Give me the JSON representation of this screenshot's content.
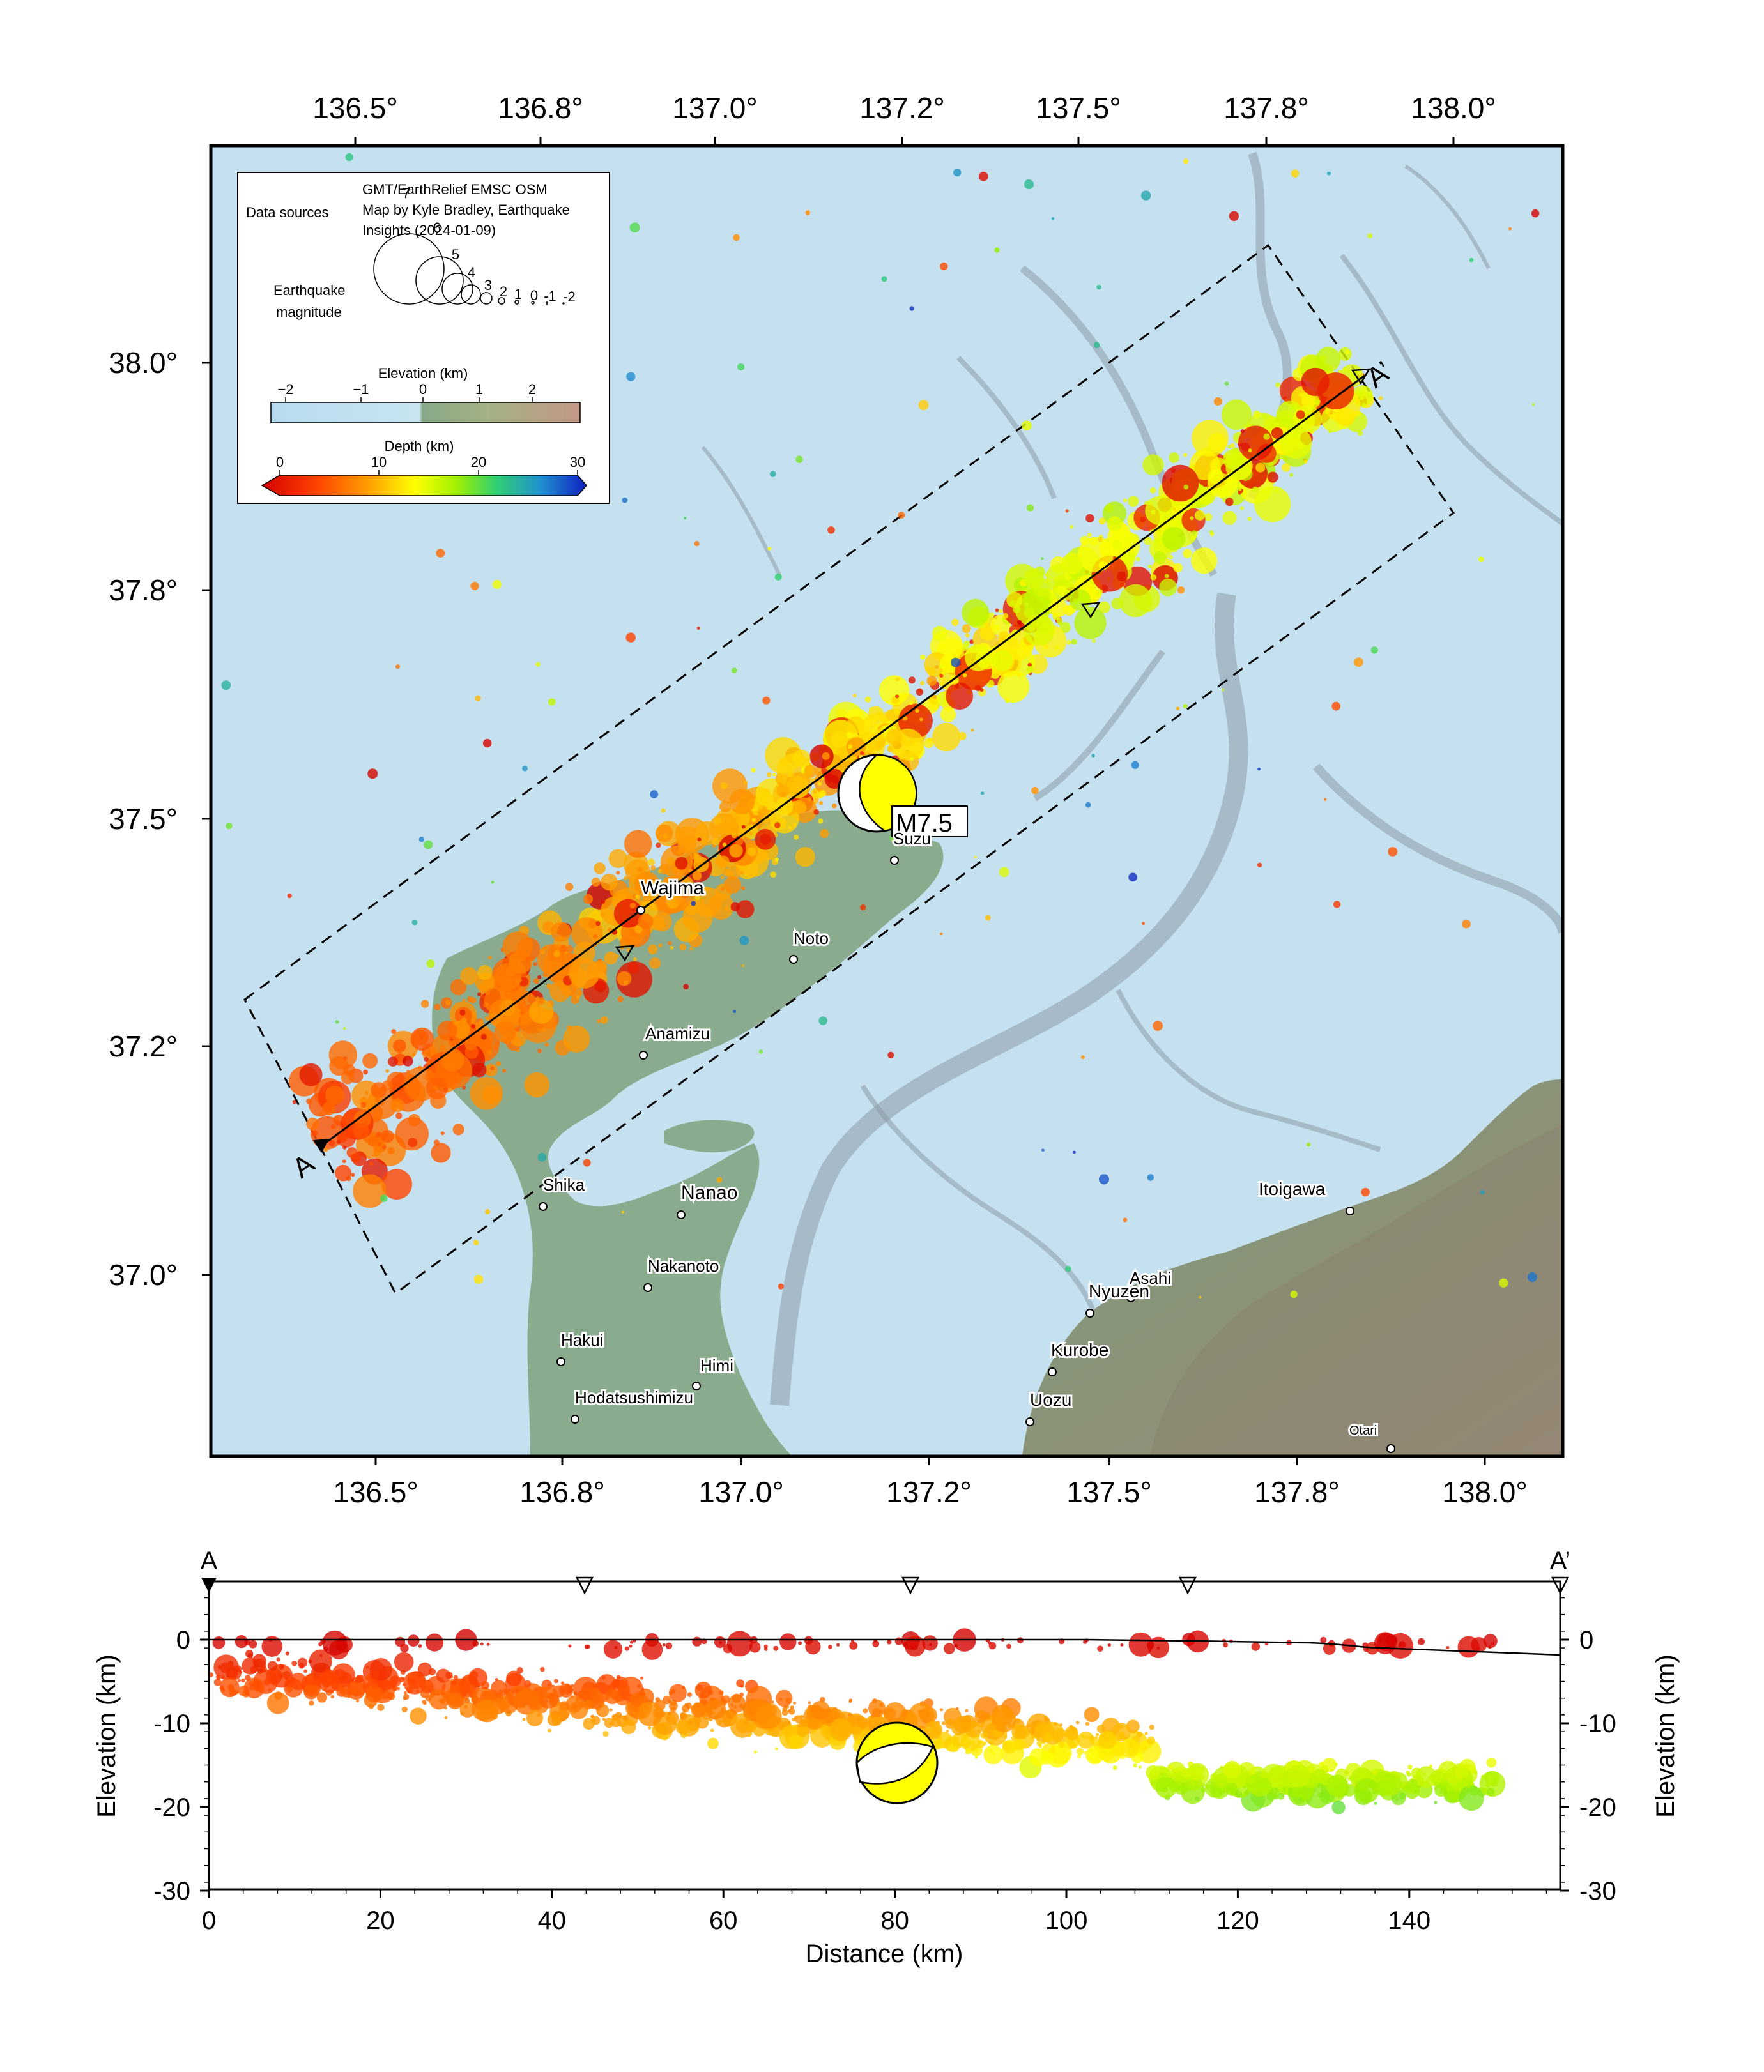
{
  "map": {
    "lon_ticks_top": [
      "136.5°",
      "136.8°",
      "137.0°",
      "137.2°",
      "137.5°",
      "137.8°",
      "138.0°"
    ],
    "lon_ticks_bottom": [
      "136.5°",
      "136.8°",
      "137.0°",
      "137.2°",
      "137.5°",
      "137.8°",
      "138.0°"
    ],
    "lat_ticks": [
      "38.0°",
      "37.8°",
      "37.5°",
      "37.2°",
      "37.0°"
    ],
    "profile_start_label": "A",
    "profile_end_label": "A’",
    "mainshock_label": "M7.5",
    "places": [
      {
        "name": "Suzu"
      },
      {
        "name": "Wajima"
      },
      {
        "name": "Noto"
      },
      {
        "name": "Anamizu"
      },
      {
        "name": "Shika"
      },
      {
        "name": "Nanao"
      },
      {
        "name": "Nakanoto"
      },
      {
        "name": "Hakui"
      },
      {
        "name": "Himi"
      },
      {
        "name": "Hodatsushimizu"
      },
      {
        "name": "Itoigawa"
      },
      {
        "name": "Asahi"
      },
      {
        "name": "Nyuzen"
      },
      {
        "name": "Kurobe"
      },
      {
        "name": "Uozu"
      },
      {
        "name": "Otari"
      }
    ]
  },
  "legend": {
    "data_sources_label": "Data sources",
    "credits_line1": "GMT/EarthRelief EMSC OSM",
    "credits_line2": "Map by Kyle Bradley, Earthquake",
    "credits_line3": "Insights (2024-01-09)",
    "magnitude_label_line1": "Earthquake",
    "magnitude_label_line2": "magnitude",
    "magnitudes": [
      "7",
      "6",
      "5",
      "4",
      "3",
      "2",
      "1",
      "0",
      "-1",
      "-2"
    ],
    "elevation_title": "Elevation (km)",
    "elevation_ticks": [
      "−2",
      "−1",
      "0",
      "1",
      "2"
    ],
    "depth_title": "Depth (km)",
    "depth_ticks": [
      "0",
      "10",
      "20",
      "30"
    ],
    "elevation_colors": [
      "#b8dcef",
      "#c4e2f0",
      "#88a888",
      "#9cae80",
      "#c8ae8c",
      "#c09880"
    ],
    "depth_colors": [
      "#d40000",
      "#ff4400",
      "#ffa000",
      "#ffff00",
      "#a0f000",
      "#30d070",
      "#2090d0",
      "#1020c0"
    ]
  },
  "section": {
    "xlabel": "Distance (km)",
    "ylabel_left": "Elevation (km)",
    "ylabel_right": "Elevation (km)",
    "x_ticks": [
      "0",
      "20",
      "40",
      "60",
      "80",
      "100",
      "120",
      "140"
    ],
    "y_ticks": [
      "0",
      "-10",
      "-20",
      "-30"
    ],
    "start_label": "A",
    "end_label": "A’"
  },
  "colors": {
    "sea": "#c5e1ef",
    "land": "#8aab8e",
    "mountain": "#8f8a74",
    "frame": "#000000"
  }
}
